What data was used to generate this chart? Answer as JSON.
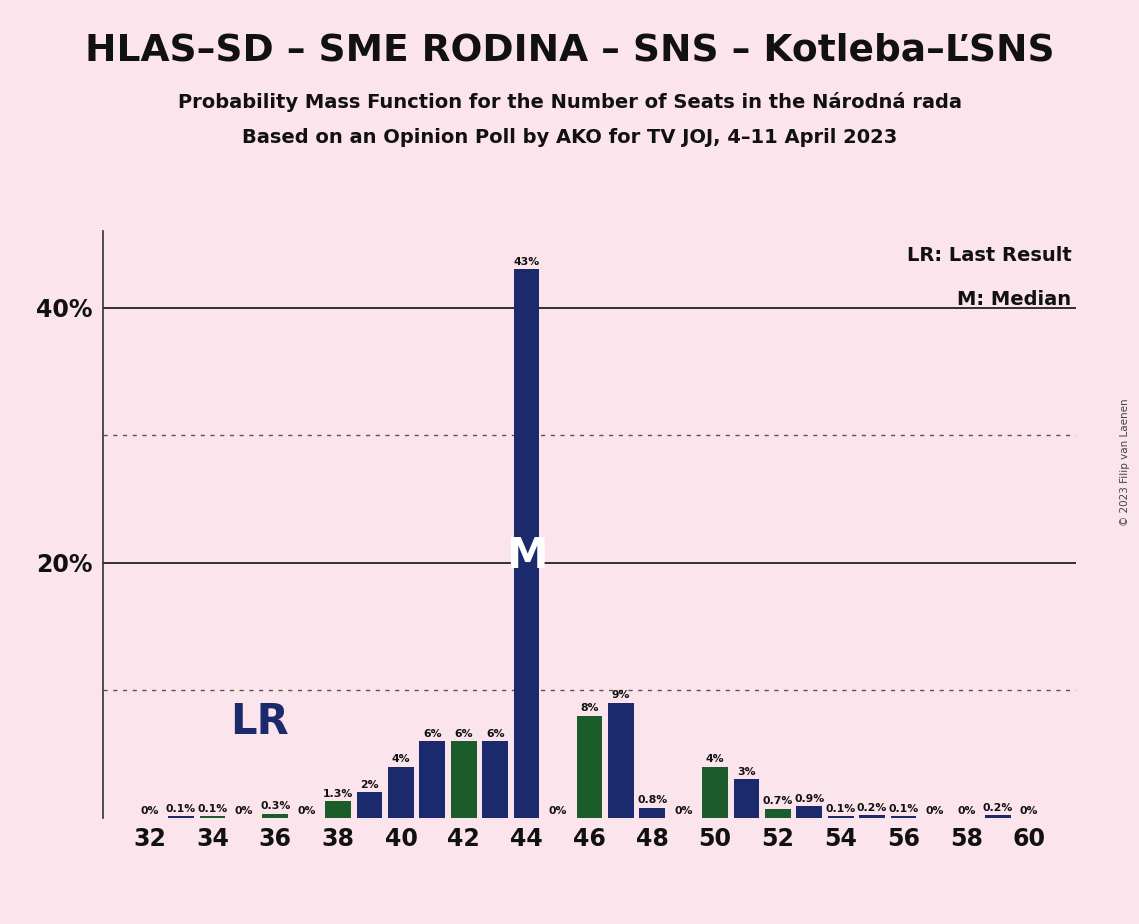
{
  "title": "HLAS–SD – SME RODINA – SNS – Kotleba–ĽSNS",
  "subtitle1": "Probability Mass Function for the Number of Seats in the Národná rada",
  "subtitle2": "Based on an Opinion Poll by AKO for TV JOJ, 4–11 April 2023",
  "copyright": "© 2023 Filip van Laenen",
  "seats": [
    32,
    33,
    34,
    35,
    36,
    37,
    38,
    39,
    40,
    41,
    42,
    43,
    44,
    45,
    46,
    47,
    48,
    49,
    50,
    51,
    52,
    53,
    54,
    55,
    56,
    57,
    58,
    59,
    60
  ],
  "probabilities": [
    0.0,
    0.001,
    0.001,
    0.0,
    0.003,
    0.0,
    0.013,
    0.02,
    0.04,
    0.06,
    0.06,
    0.06,
    0.43,
    0.0,
    0.08,
    0.09,
    0.008,
    0.0,
    0.04,
    0.03,
    0.007,
    0.009,
    0.001,
    0.002,
    0.001,
    0.0,
    0.0,
    0.002,
    0.0
  ],
  "bar_labels": [
    "0%",
    "0.1%",
    "0.1%",
    "0%",
    "0.3%",
    "0%",
    "1.3%",
    "2%",
    "4%",
    "6%",
    "6%",
    "6%",
    "43%",
    "0%",
    "8%",
    "9%",
    "0.8%",
    "0%",
    "4%",
    "3%",
    "0.7%",
    "0.9%",
    "0.1%",
    "0.2%",
    "0.1%",
    "0%",
    "0%",
    "0.2%",
    "0%"
  ],
  "green_seats": [
    34,
    36,
    38,
    42,
    46,
    50,
    52
  ],
  "median_seat": 44,
  "background_color": "#fce4ec",
  "bar_color_dark_blue": "#1a2a6c",
  "bar_color_green": "#1a5c2a",
  "legend_lr": "LR: Last Result",
  "legend_m": "M: Median",
  "ylim_max": 0.46,
  "ytick_values": [
    0.0,
    0.2,
    0.4
  ],
  "ytick_labels": [
    "",
    "20%",
    "40%"
  ],
  "dotted_line_values": [
    0.1,
    0.3
  ],
  "solid_line_values": [
    0.2,
    0.4
  ]
}
